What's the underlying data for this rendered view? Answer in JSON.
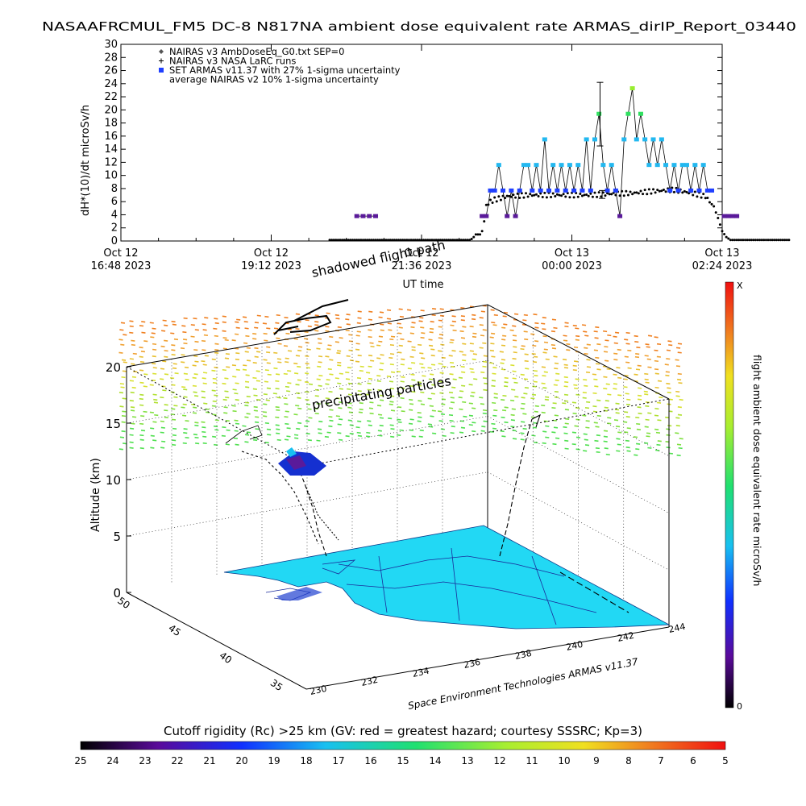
{
  "header": {
    "title": "NASAAFRCMUL_FM5 DC-8   N817NA ambient dose equivalent rate ARMAS_dirIP_Report_03440"
  },
  "chart_data": [
    {
      "type": "scatter",
      "ylabel": "dH*(10)/dt microSv/h",
      "ylim": [
        0,
        30
      ],
      "yticks": [
        0,
        2,
        4,
        6,
        8,
        10,
        12,
        14,
        16,
        18,
        20,
        22,
        24,
        26,
        28,
        30
      ],
      "xlabel": "UT time",
      "xticks": [
        {
          "l1": "Oct 12",
          "l2": "16:48 2023"
        },
        {
          "l1": "Oct 12",
          "l2": "19:12 2023"
        },
        {
          "l1": "Oct 12",
          "l2": "21:36 2023"
        },
        {
          "l1": "Oct 13",
          "l2": "00:00 2023"
        },
        {
          "l1": "Oct 13",
          "l2": "02:24 2023"
        }
      ],
      "legend": {
        "placement": "top-left",
        "entries": [
          {
            "symbol": "diamond",
            "text": "NAIRAS v3 AmbDoseEq_G0.txt SEP=0"
          },
          {
            "symbol": "plus",
            "text": "NAIRAS v3 NASA LaRC runs"
          },
          {
            "symbol": "square",
            "text": "SET ARMAS v11.37 with 27% 1-sigma uncertainty"
          },
          {
            "symbol": "none",
            "text": "average NAIRAS v2 10% 1-sigma uncertainty"
          }
        ]
      },
      "colors": {
        "armas_low": "#5a1a9a",
        "armas_mid": "#2040ff",
        "armas_high": "#22b8f0",
        "armas_peak1": "#30e060",
        "armas_peak2": "#98ee30"
      },
      "armas": [
        {
          "t": -24,
          "v": 3.8
        },
        {
          "t": -18,
          "v": 3.8
        },
        {
          "t": -12,
          "v": 3.8
        },
        {
          "t": -6,
          "v": 3.8
        },
        {
          "t": 96,
          "v": 3.8
        },
        {
          "t": 100,
          "v": 3.8
        },
        {
          "t": 104,
          "v": 7.7
        },
        {
          "t": 108,
          "v": 7.7
        },
        {
          "t": 112,
          "v": 11.6
        },
        {
          "t": 116,
          "v": 7.7
        },
        {
          "t": 120,
          "v": 3.8
        },
        {
          "t": 124,
          "v": 7.7
        },
        {
          "t": 128,
          "v": 3.8
        },
        {
          "t": 132,
          "v": 7.7
        },
        {
          "t": 136,
          "v": 11.6
        },
        {
          "t": 140,
          "v": 11.6
        },
        {
          "t": 144,
          "v": 7.7
        },
        {
          "t": 148,
          "v": 11.6
        },
        {
          "t": 152,
          "v": 7.7
        },
        {
          "t": 156,
          "v": 15.5
        },
        {
          "t": 160,
          "v": 7.7
        },
        {
          "t": 164,
          "v": 11.6
        },
        {
          "t": 168,
          "v": 7.7
        },
        {
          "t": 172,
          "v": 11.6
        },
        {
          "t": 176,
          "v": 7.7
        },
        {
          "t": 180,
          "v": 11.6
        },
        {
          "t": 184,
          "v": 7.7
        },
        {
          "t": 188,
          "v": 11.6
        },
        {
          "t": 192,
          "v": 7.7
        },
        {
          "t": 196,
          "v": 15.5
        },
        {
          "t": 200,
          "v": 7.7
        },
        {
          "t": 204,
          "v": 15.5
        },
        {
          "t": 208,
          "v": 19.4
        },
        {
          "t": 212,
          "v": 11.6
        },
        {
          "t": 216,
          "v": 7.7
        },
        {
          "t": 220,
          "v": 11.6
        },
        {
          "t": 224,
          "v": 7.7
        },
        {
          "t": 228,
          "v": 3.8
        },
        {
          "t": 232,
          "v": 15.5
        },
        {
          "t": 236,
          "v": 19.4
        },
        {
          "t": 240,
          "v": 23.3
        },
        {
          "t": 244,
          "v": 15.5
        },
        {
          "t": 248,
          "v": 19.4
        },
        {
          "t": 252,
          "v": 15.5
        },
        {
          "t": 256,
          "v": 11.6
        },
        {
          "t": 260,
          "v": 15.5
        },
        {
          "t": 264,
          "v": 11.6
        },
        {
          "t": 268,
          "v": 15.5
        },
        {
          "t": 272,
          "v": 11.6
        },
        {
          "t": 276,
          "v": 7.7
        },
        {
          "t": 280,
          "v": 11.6
        },
        {
          "t": 284,
          "v": 7.7
        },
        {
          "t": 288,
          "v": 11.6
        },
        {
          "t": 292,
          "v": 11.6
        },
        {
          "t": 296,
          "v": 7.7
        },
        {
          "t": 300,
          "v": 11.6
        },
        {
          "t": 304,
          "v": 7.7
        },
        {
          "t": 308,
          "v": 11.6
        },
        {
          "t": 312,
          "v": 7.7
        },
        {
          "t": 316,
          "v": 7.7
        },
        {
          "t": 328,
          "v": 3.8
        },
        {
          "t": 332,
          "v": 3.8
        },
        {
          "t": 336,
          "v": 3.8
        },
        {
          "t": 340,
          "v": 3.8
        }
      ],
      "errorbars": [
        {
          "t": 209,
          "low": 14.5,
          "high": 24.2
        },
        {
          "t": 211,
          "low": 6.5,
          "high": 7.7
        }
      ],
      "nairas": [
        {
          "t": -50,
          "v": 0.15
        },
        {
          "t": 84,
          "v": 0.15
        },
        {
          "t": 86,
          "v": 0.3
        },
        {
          "t": 88,
          "v": 0.6
        },
        {
          "t": 90,
          "v": 1.0
        },
        {
          "t": 92,
          "v": 1.0
        },
        {
          "t": 94,
          "v": 1.0
        },
        {
          "t": 96,
          "v": 1.5
        },
        {
          "t": 98,
          "v": 3.0
        },
        {
          "t": 100,
          "v": 5.5
        },
        {
          "t": 104,
          "v": 6.0
        },
        {
          "t": 108,
          "v": 6.3
        },
        {
          "t": 120,
          "v": 6.8
        },
        {
          "t": 140,
          "v": 7.0
        },
        {
          "t": 160,
          "v": 7.0
        },
        {
          "t": 180,
          "v": 7.0
        },
        {
          "t": 200,
          "v": 7.0
        },
        {
          "t": 220,
          "v": 7.2
        },
        {
          "t": 240,
          "v": 7.3
        },
        {
          "t": 260,
          "v": 7.6
        },
        {
          "t": 280,
          "v": 7.8
        },
        {
          "t": 300,
          "v": 7.2
        },
        {
          "t": 310,
          "v": 6.8
        },
        {
          "t": 318,
          "v": 5.2
        },
        {
          "t": 322,
          "v": 3.5
        },
        {
          "t": 326,
          "v": 1.5
        },
        {
          "t": 330,
          "v": 0.6
        },
        {
          "t": 334,
          "v": 0.15
        },
        {
          "t": 390,
          "v": 0.15
        }
      ],
      "x_tick_minutes": [
        0,
        144,
        288,
        432,
        576
      ],
      "xlim_minutes": [
        0,
        576
      ],
      "origin_note": ""
    },
    {
      "type": "scatter3d",
      "ylabel": "Altitude (km)",
      "zticks": [
        0,
        5,
        10,
        15,
        20
      ],
      "lat_ticks": [
        35,
        40,
        45,
        50
      ],
      "lon_ticks": [
        230,
        232,
        234,
        236,
        238,
        240,
        242,
        244
      ],
      "annotations": {
        "flight_path": "shadowed flight path",
        "particles": "precipitating particles",
        "credit": "Space Environment Technologies ARMAS v11.37"
      },
      "colorbar": {
        "label": "flight ambient dose equivalent rate microSv/h",
        "top": "X",
        "bottom": "0"
      },
      "surface_color": "#22d8f4"
    },
    {
      "type": "colorbar",
      "title": "Cutoff rigidity (Rc) >25 km (GV: red = greatest hazard; courtesy SSSRC; Kp=3)",
      "ticks": [
        25,
        24,
        23,
        22,
        21,
        20,
        19,
        18,
        17,
        16,
        15,
        14,
        13,
        12,
        11,
        10,
        9,
        8,
        7,
        6,
        5
      ]
    }
  ]
}
